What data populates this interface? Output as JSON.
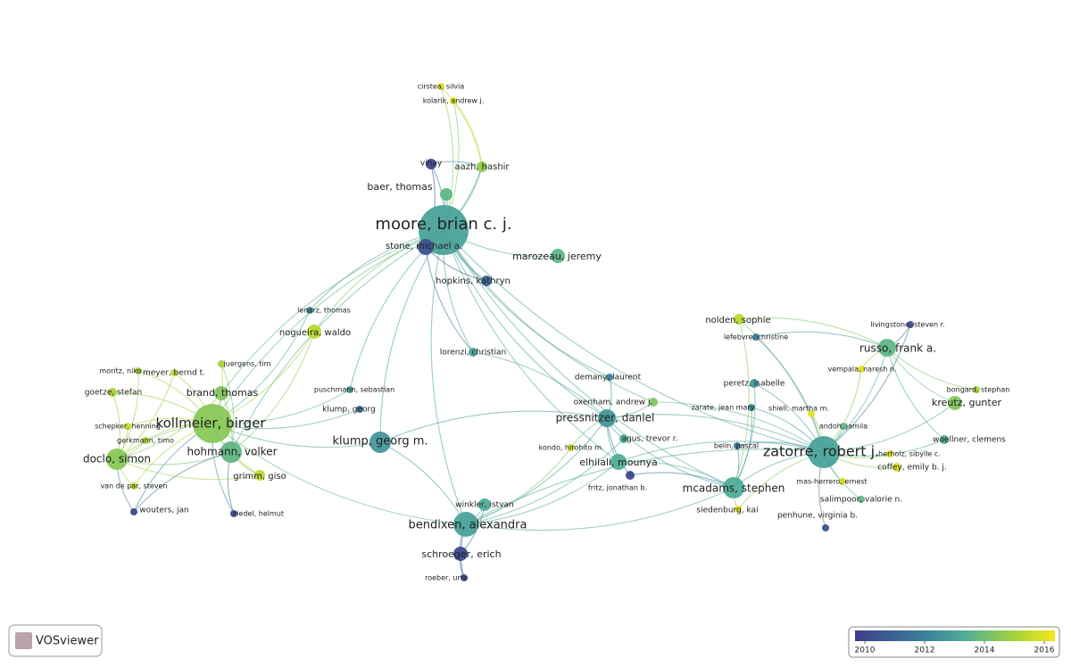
{
  "logo": "VOSviewer",
  "nodes": [
    {
      "label": "moore, brian c. j."
    },
    {
      "label": "zatorre, robert j."
    },
    {
      "label": "kollmeier, birger"
    },
    {
      "label": "bendixen, alexandra"
    },
    {
      "label": "klump, georg m."
    },
    {
      "label": "pressnitzer, daniel"
    },
    {
      "label": "hohmann, volker"
    },
    {
      "label": "doclo, simon"
    },
    {
      "label": "mcadams, stephen"
    },
    {
      "label": "russo, frank a."
    },
    {
      "label": "elhilali, mounya"
    },
    {
      "label": "brand, thomas"
    },
    {
      "label": "baer, thomas"
    },
    {
      "label": "stone, michael a."
    },
    {
      "label": "marozeau, jeremy"
    },
    {
      "label": "hopkins, kathryn"
    },
    {
      "label": "nogueira, waldo"
    },
    {
      "label": "kreutz, gunter"
    },
    {
      "label": "nolden, sophie"
    },
    {
      "label": "schroeger, erich"
    },
    {
      "label": "winkler, istvan"
    },
    {
      "label": "lorenzi, christian"
    },
    {
      "label": "grimm, giso"
    },
    {
      "label": "aazh, hashir"
    },
    {
      "label": "vinay"
    },
    {
      "label": "cirstea, silvia"
    },
    {
      "label": "kolarik, andrew j."
    },
    {
      "label": "lenarz, thomas"
    },
    {
      "label": "moritz, niko"
    },
    {
      "label": "meyer, bernd t."
    },
    {
      "label": "juergens, tim"
    },
    {
      "label": "goetze, stefan"
    },
    {
      "label": "schepker, henning"
    },
    {
      "label": "gerkmann, timo"
    },
    {
      "label": "van de par, steven"
    },
    {
      "label": "wouters, jan"
    },
    {
      "label": "riedel, helmut"
    },
    {
      "label": "puschmann, sebastian"
    },
    {
      "label": "klump, georg"
    },
    {
      "label": "demany, laurent"
    },
    {
      "label": "oxenham, andrew j."
    },
    {
      "label": "agus, trevor r."
    },
    {
      "label": "kondo, hirohito m."
    },
    {
      "label": "fritz, jonathan b."
    },
    {
      "label": "zarate, jean mary"
    },
    {
      "label": "peretz, isabelle"
    },
    {
      "label": "lefebvre, christine"
    },
    {
      "label": "livingstone, steven r."
    },
    {
      "label": "vempala, naresh n."
    },
    {
      "label": "bongard, stephan"
    },
    {
      "label": "shiell, martha m."
    },
    {
      "label": "andoh, jamila"
    },
    {
      "label": "woellner, clemens"
    },
    {
      "label": "herholz, sibylle c."
    },
    {
      "label": "coffey, emily b. j."
    },
    {
      "label": "belin, pascal"
    },
    {
      "label": "mas-herrero, ernest"
    },
    {
      "label": "salimpoor, valorie n."
    },
    {
      "label": "penhune, virginia b."
    },
    {
      "label": "siedenburg, kai"
    },
    {
      "label": "roeber, urte"
    }
  ],
  "legend": {
    "ticks": [
      2010,
      2012,
      2014,
      2016
    ]
  }
}
